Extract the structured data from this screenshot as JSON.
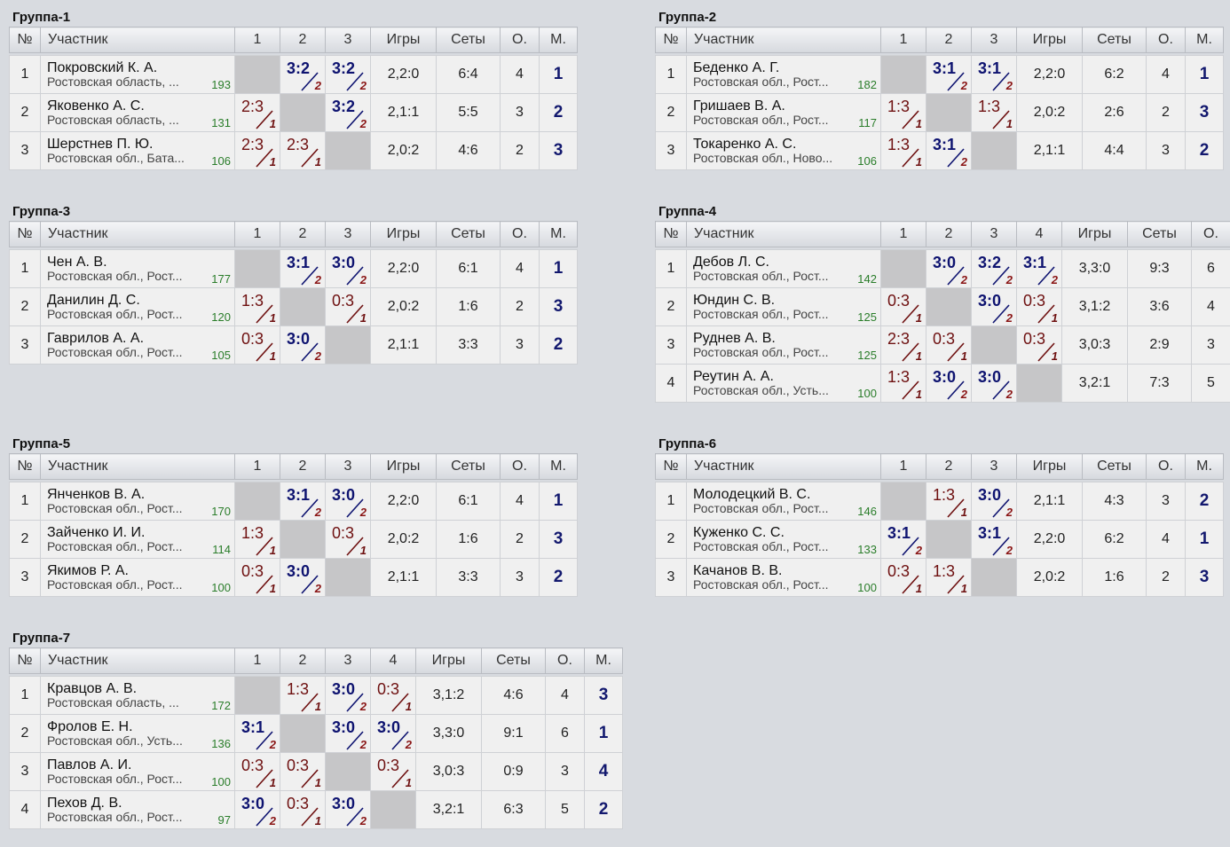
{
  "headers": {
    "num": "№",
    "participant": "Участник",
    "games": "Игры",
    "sets": "Сеты",
    "points": "О.",
    "place": "М."
  },
  "groups": [
    {
      "title": "Группа-1",
      "players": [
        {
          "n": "1",
          "name": "Покровский К. А.",
          "region": "Ростовская область, ...",
          "rating": "193",
          "results": [
            null,
            {
              "s": "3:2",
              "d": "2",
              "w": true
            },
            {
              "s": "3:2",
              "d": "2",
              "w": true
            }
          ],
          "games": "2,2:0",
          "sets": "6:4",
          "points": "4",
          "place": "1"
        },
        {
          "n": "2",
          "name": "Яковенко А. С.",
          "region": "Ростовская область, ...",
          "rating": "131",
          "results": [
            {
              "s": "2:3",
              "d": "1",
              "w": false
            },
            null,
            {
              "s": "3:2",
              "d": "2",
              "w": true
            }
          ],
          "games": "2,1:1",
          "sets": "5:5",
          "points": "3",
          "place": "2"
        },
        {
          "n": "3",
          "name": "Шерстнев П. Ю.",
          "region": "Ростовская обл., Бата...",
          "rating": "106",
          "results": [
            {
              "s": "2:3",
              "d": "1",
              "w": false
            },
            {
              "s": "2:3",
              "d": "1",
              "w": false
            },
            null
          ],
          "games": "2,0:2",
          "sets": "4:6",
          "points": "2",
          "place": "3"
        }
      ]
    },
    {
      "title": "Группа-2",
      "players": [
        {
          "n": "1",
          "name": "Беденко А. Г.",
          "region": "Ростовская обл., Рост...",
          "rating": "182",
          "results": [
            null,
            {
              "s": "3:1",
              "d": "2",
              "w": true
            },
            {
              "s": "3:1",
              "d": "2",
              "w": true
            }
          ],
          "games": "2,2:0",
          "sets": "6:2",
          "points": "4",
          "place": "1"
        },
        {
          "n": "2",
          "name": "Гришаев В. А.",
          "region": "Ростовская обл., Рост...",
          "rating": "117",
          "results": [
            {
              "s": "1:3",
              "d": "1",
              "w": false
            },
            null,
            {
              "s": "1:3",
              "d": "1",
              "w": false
            }
          ],
          "games": "2,0:2",
          "sets": "2:6",
          "points": "2",
          "place": "3"
        },
        {
          "n": "3",
          "name": "Токаренко А. С.",
          "region": "Ростовская обл., Ново...",
          "rating": "106",
          "results": [
            {
              "s": "1:3",
              "d": "1",
              "w": false
            },
            {
              "s": "3:1",
              "d": "2",
              "w": true
            },
            null
          ],
          "games": "2,1:1",
          "sets": "4:4",
          "points": "3",
          "place": "2"
        }
      ]
    },
    {
      "title": "Группа-3",
      "players": [
        {
          "n": "1",
          "name": "Чен А. В.",
          "region": "Ростовская обл., Рост...",
          "rating": "177",
          "results": [
            null,
            {
              "s": "3:1",
              "d": "2",
              "w": true
            },
            {
              "s": "3:0",
              "d": "2",
              "w": true
            }
          ],
          "games": "2,2:0",
          "sets": "6:1",
          "points": "4",
          "place": "1"
        },
        {
          "n": "2",
          "name": "Данилин Д. С.",
          "region": "Ростовская обл., Рост...",
          "rating": "120",
          "results": [
            {
              "s": "1:3",
              "d": "1",
              "w": false
            },
            null,
            {
              "s": "0:3",
              "d": "1",
              "w": false
            }
          ],
          "games": "2,0:2",
          "sets": "1:6",
          "points": "2",
          "place": "3"
        },
        {
          "n": "3",
          "name": "Гаврилов А. А.",
          "region": "Ростовская обл., Рост...",
          "rating": "105",
          "results": [
            {
              "s": "0:3",
              "d": "1",
              "w": false
            },
            {
              "s": "3:0",
              "d": "2",
              "w": true
            },
            null
          ],
          "games": "2,1:1",
          "sets": "3:3",
          "points": "3",
          "place": "2"
        }
      ]
    },
    {
      "title": "Группа-4",
      "players": [
        {
          "n": "1",
          "name": "Дебов Л. С.",
          "region": "Ростовская обл., Рост...",
          "rating": "142",
          "results": [
            null,
            {
              "s": "3:0",
              "d": "2",
              "w": true
            },
            {
              "s": "3:2",
              "d": "2",
              "w": true
            },
            {
              "s": "3:1",
              "d": "2",
              "w": true
            }
          ],
          "games": "3,3:0",
          "sets": "9:3",
          "points": "6",
          "place": ""
        },
        {
          "n": "2",
          "name": "Юндин С. В.",
          "region": "Ростовская обл., Рост...",
          "rating": "125",
          "results": [
            {
              "s": "0:3",
              "d": "1",
              "w": false
            },
            null,
            {
              "s": "3:0",
              "d": "2",
              "w": true
            },
            {
              "s": "0:3",
              "d": "1",
              "w": false
            }
          ],
          "games": "3,1:2",
          "sets": "3:6",
          "points": "4",
          "place": ""
        },
        {
          "n": "3",
          "name": "Руднев А. В.",
          "region": "Ростовская обл., Рост...",
          "rating": "125",
          "results": [
            {
              "s": "2:3",
              "d": "1",
              "w": false
            },
            {
              "s": "0:3",
              "d": "1",
              "w": false
            },
            null,
            {
              "s": "0:3",
              "d": "1",
              "w": false
            }
          ],
          "games": "3,0:3",
          "sets": "2:9",
          "points": "3",
          "place": ""
        },
        {
          "n": "4",
          "name": "Реутин А. А.",
          "region": "Ростовская обл., Усть...",
          "rating": "100",
          "results": [
            {
              "s": "1:3",
              "d": "1",
              "w": false
            },
            {
              "s": "3:0",
              "d": "2",
              "w": true
            },
            {
              "s": "3:0",
              "d": "2",
              "w": true
            },
            null
          ],
          "games": "3,2:1",
          "sets": "7:3",
          "points": "5",
          "place": ""
        }
      ]
    },
    {
      "title": "Группа-5",
      "players": [
        {
          "n": "1",
          "name": "Янченков В. А.",
          "region": "Ростовская обл., Рост...",
          "rating": "170",
          "results": [
            null,
            {
              "s": "3:1",
              "d": "2",
              "w": true
            },
            {
              "s": "3:0",
              "d": "2",
              "w": true
            }
          ],
          "games": "2,2:0",
          "sets": "6:1",
          "points": "4",
          "place": "1"
        },
        {
          "n": "2",
          "name": "Зайченко И. И.",
          "region": "Ростовская обл., Рост...",
          "rating": "114",
          "results": [
            {
              "s": "1:3",
              "d": "1",
              "w": false
            },
            null,
            {
              "s": "0:3",
              "d": "1",
              "w": false
            }
          ],
          "games": "2,0:2",
          "sets": "1:6",
          "points": "2",
          "place": "3"
        },
        {
          "n": "3",
          "name": "Якимов Р. А.",
          "region": "Ростовская обл., Рост...",
          "rating": "100",
          "results": [
            {
              "s": "0:3",
              "d": "1",
              "w": false
            },
            {
              "s": "3:0",
              "d": "2",
              "w": true
            },
            null
          ],
          "games": "2,1:1",
          "sets": "3:3",
          "points": "3",
          "place": "2"
        }
      ]
    },
    {
      "title": "Группа-6",
      "players": [
        {
          "n": "1",
          "name": "Молодецкий В. С.",
          "region": "Ростовская обл., Рост...",
          "rating": "146",
          "results": [
            null,
            {
              "s": "1:3",
              "d": "1",
              "w": false
            },
            {
              "s": "3:0",
              "d": "2",
              "w": true
            }
          ],
          "games": "2,1:1",
          "sets": "4:3",
          "points": "3",
          "place": "2"
        },
        {
          "n": "2",
          "name": "Куженко С. С.",
          "region": "Ростовская обл., Рост...",
          "rating": "133",
          "results": [
            {
              "s": "3:1",
              "d": "2",
              "w": true
            },
            null,
            {
              "s": "3:1",
              "d": "2",
              "w": true
            }
          ],
          "games": "2,2:0",
          "sets": "6:2",
          "points": "4",
          "place": "1"
        },
        {
          "n": "3",
          "name": "Качанов В. В.",
          "region": "Ростовская обл., Рост...",
          "rating": "100",
          "results": [
            {
              "s": "0:3",
              "d": "1",
              "w": false
            },
            {
              "s": "1:3",
              "d": "1",
              "w": false
            },
            null
          ],
          "games": "2,0:2",
          "sets": "1:6",
          "points": "2",
          "place": "3"
        }
      ]
    },
    {
      "title": "Группа-7",
      "players": [
        {
          "n": "1",
          "name": "Кравцов А. В.",
          "region": "Ростовская область, ...",
          "rating": "172",
          "results": [
            null,
            {
              "s": "1:3",
              "d": "1",
              "w": false
            },
            {
              "s": "3:0",
              "d": "2",
              "w": true
            },
            {
              "s": "0:3",
              "d": "1",
              "w": false
            }
          ],
          "games": "3,1:2",
          "sets": "4:6",
          "points": "4",
          "place": "3"
        },
        {
          "n": "2",
          "name": "Фролов Е. Н.",
          "region": "Ростовская обл., Усть...",
          "rating": "136",
          "results": [
            {
              "s": "3:1",
              "d": "2",
              "w": true
            },
            null,
            {
              "s": "3:0",
              "d": "2",
              "w": true
            },
            {
              "s": "3:0",
              "d": "2",
              "w": true
            }
          ],
          "games": "3,3:0",
          "sets": "9:1",
          "points": "6",
          "place": "1"
        },
        {
          "n": "3",
          "name": "Павлов А. И.",
          "region": "Ростовская обл., Рост...",
          "rating": "100",
          "results": [
            {
              "s": "0:3",
              "d": "1",
              "w": false
            },
            {
              "s": "0:3",
              "d": "1",
              "w": false
            },
            null,
            {
              "s": "0:3",
              "d": "1",
              "w": false
            }
          ],
          "games": "3,0:3",
          "sets": "0:9",
          "points": "3",
          "place": "4"
        },
        {
          "n": "4",
          "name": "Пехов Д. В.",
          "region": "Ростовская обл., Рост...",
          "rating": "97",
          "results": [
            {
              "s": "3:0",
              "d": "2",
              "w": true
            },
            {
              "s": "0:3",
              "d": "1",
              "w": false
            },
            {
              "s": "3:0",
              "d": "2",
              "w": true
            },
            null
          ],
          "games": "3,2:1",
          "sets": "6:3",
          "points": "5",
          "place": "2"
        }
      ]
    }
  ]
}
